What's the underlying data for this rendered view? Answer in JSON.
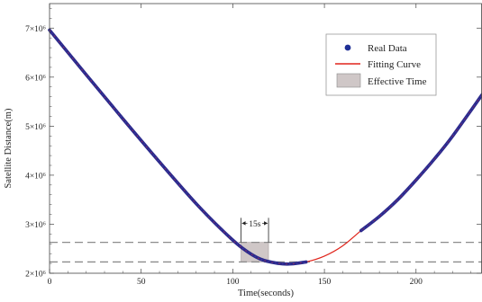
{
  "chart_data": {
    "type": "line",
    "xlabel": "Time(seconds)",
    "ylabel": "Satellite Distance(m)",
    "xlim": [
      0,
      236
    ],
    "ylim": [
      2000000,
      7500000
    ],
    "x_ticks": [
      {
        "value": 0,
        "label": "0"
      },
      {
        "value": 50,
        "label": "50"
      },
      {
        "value": 100,
        "label": "100"
      },
      {
        "value": 150,
        "label": "150"
      },
      {
        "value": 200,
        "label": "200"
      }
    ],
    "y_ticks": [
      {
        "value": 2000000,
        "label": "2×10⁶"
      },
      {
        "value": 3000000,
        "label": "3×10⁶"
      },
      {
        "value": 4000000,
        "label": "4×10⁶"
      },
      {
        "value": 5000000,
        "label": "5×10⁶"
      },
      {
        "value": 6000000,
        "label": "6×10⁶"
      },
      {
        "value": 7000000,
        "label": "7×10⁶"
      }
    ],
    "series": [
      {
        "name": "Real Data",
        "color": "#2a2a8c",
        "segments": [
          {
            "x": [
              0,
              20,
              40,
              60,
              80,
              95,
              105,
              115,
              125,
              132,
              140
            ],
            "y": [
              6960000,
              6050000,
              5150000,
              4270000,
              3420000,
              2850000,
              2520000,
              2290000,
              2200000,
              2190000,
              2230000
            ]
          },
          {
            "x": [
              170,
              180,
              190,
              200,
              210,
              220,
              236
            ],
            "y": [
              2870000,
              3160000,
              3500000,
              3900000,
              4330000,
              4800000,
              5640000
            ]
          }
        ]
      },
      {
        "name": "Fitting Curve",
        "color": "#e0241b",
        "x": [
          0,
          20,
          40,
          60,
          80,
          95,
          105,
          115,
          125,
          132,
          140,
          150,
          160,
          170,
          180,
          190,
          200,
          210,
          220,
          236
        ],
        "y": [
          6960000,
          6050000,
          5150000,
          4270000,
          3420000,
          2850000,
          2520000,
          2290000,
          2200000,
          2190000,
          2230000,
          2350000,
          2560000,
          2870000,
          3160000,
          3500000,
          3900000,
          4330000,
          4800000,
          5640000
        ]
      }
    ],
    "effective_time": {
      "name": "Effective Time",
      "color": "#cfc7c7",
      "x_start": 104.5,
      "x_end": 119.5
    },
    "horizontal_dashed_lines": [
      2630000,
      2230000
    ],
    "annotation": {
      "label": "15s",
      "x_start": 104.5,
      "x_end": 119.5,
      "y": 3020000
    },
    "legend": {
      "position": "top-right"
    }
  }
}
